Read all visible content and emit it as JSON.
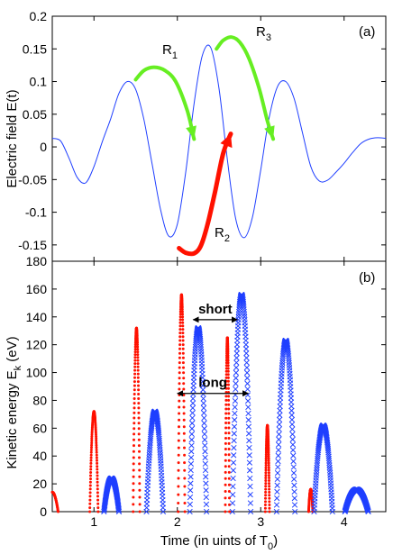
{
  "chart_data": [
    {
      "panel_label": "(a)",
      "type": "line",
      "ylabel": "Electric field E(t)",
      "ylim": [
        -0.175,
        0.2
      ],
      "yticks": [
        -0.15,
        -0.1,
        -0.05,
        0,
        0.05,
        0.1,
        0.15,
        0.2
      ],
      "ytick_labels": [
        "-0.15",
        "-0.1",
        "-0.05",
        "0",
        "0.05",
        "0.1",
        "0.15",
        "0.2"
      ],
      "xlim": [
        0.5,
        4.5
      ],
      "grid": false,
      "series": [
        {
          "color": "#1f3fff",
          "x": [
            0.5,
            0.6,
            0.7,
            0.8,
            0.9,
            1.0,
            1.1,
            1.2,
            1.3,
            1.4,
            1.5,
            1.6,
            1.7,
            1.8,
            1.9,
            2.0,
            2.1,
            2.2,
            2.3,
            2.4,
            2.5,
            2.6,
            2.7,
            2.8,
            2.9,
            3.0,
            3.1,
            3.2,
            3.3,
            3.4,
            3.5,
            3.6,
            3.7,
            3.8,
            3.9,
            4.0,
            4.1,
            4.2,
            4.3,
            4.4,
            4.5
          ],
          "y": [
            0.013,
            0.009,
            -0.017,
            -0.047,
            -0.055,
            -0.03,
            0.008,
            0.043,
            0.082,
            0.1,
            0.088,
            0.041,
            -0.028,
            -0.097,
            -0.137,
            -0.118,
            -0.039,
            0.066,
            0.14,
            0.152,
            0.089,
            -0.02,
            -0.11,
            -0.139,
            -0.108,
            -0.035,
            0.044,
            0.092,
            0.1,
            0.074,
            0.022,
            -0.03,
            -0.052,
            -0.051,
            -0.039,
            -0.025,
            -0.009,
            0.005,
            0.012,
            0.014,
            0.013
          ]
        }
      ],
      "arrows": [
        {
          "label": "R",
          "subscript": "1",
          "color": "#66ee22",
          "x": [
            1.5,
            1.6,
            1.72,
            1.85,
            1.98,
            2.12,
            2.2
          ],
          "y": [
            0.103,
            0.117,
            0.122,
            0.117,
            0.1,
            0.055,
            0.012
          ]
        },
        {
          "label": "R",
          "subscript": "2",
          "color": "#ff1100",
          "x": [
            2.02,
            2.1,
            2.2,
            2.28,
            2.36,
            2.45,
            2.55,
            2.64
          ],
          "y": [
            -0.155,
            -0.162,
            -0.163,
            -0.152,
            -0.12,
            -0.07,
            -0.01,
            0.02
          ]
        },
        {
          "label": "R",
          "subscript": "3",
          "color": "#66ee22",
          "x": [
            2.47,
            2.55,
            2.65,
            2.75,
            2.86,
            2.98,
            3.08,
            3.15
          ],
          "y": [
            0.15,
            0.163,
            0.168,
            0.16,
            0.135,
            0.09,
            0.04,
            0.012
          ]
        }
      ]
    },
    {
      "panel_label": "(b)",
      "type": "scatter",
      "xlabel": "Time (in uints of T",
      "xlabel_subscript": "0",
      "xlabel_suffix": ")",
      "ylabel": "Kinetic energy E",
      "ylabel_subscript": "k",
      "ylabel_suffix": " (eV)",
      "xlim": [
        0.5,
        4.5
      ],
      "ylim": [
        0,
        180
      ],
      "xticks": [
        1,
        2,
        3,
        4
      ],
      "xtick_labels": [
        "1",
        "2",
        "3",
        "4"
      ],
      "yticks": [
        0,
        20,
        40,
        60,
        80,
        100,
        120,
        140,
        160,
        180
      ],
      "ytick_labels": [
        "0",
        "20",
        "40",
        "60",
        "80",
        "100",
        "120",
        "140",
        "160",
        "180"
      ],
      "grid": false,
      "series": [
        {
          "marker": "dot",
          "color": "#ff1100",
          "peaks": [
            {
              "center": 0.5,
              "height": 14,
              "width": 0.07
            },
            {
              "center": 1.0,
              "height": 72,
              "width": 0.05
            },
            {
              "center": 1.51,
              "height": 132,
              "width": 0.04
            },
            {
              "center": 2.05,
              "height": 156,
              "width": 0.04
            },
            {
              "center": 2.6,
              "height": 125,
              "width": 0.025
            },
            {
              "center": 3.08,
              "height": 62,
              "width": 0.025
            },
            {
              "center": 3.6,
              "height": 16,
              "width": 0.025
            }
          ]
        },
        {
          "marker": "x",
          "color": "#1f3fff",
          "peaks": [
            {
              "center": 1.21,
              "height": 24,
              "width": 0.09
            },
            {
              "center": 1.73,
              "height": 72,
              "width": 0.1
            },
            {
              "center": 2.25,
              "height": 132,
              "width": 0.1
            },
            {
              "center": 2.77,
              "height": 156,
              "width": 0.11
            },
            {
              "center": 3.3,
              "height": 123,
              "width": 0.11
            },
            {
              "center": 3.75,
              "height": 62,
              "width": 0.11
            },
            {
              "center": 4.15,
              "height": 16,
              "width": 0.14
            }
          ]
        }
      ],
      "annotations": [
        {
          "text": "short",
          "x1": 2.19,
          "x2": 2.72,
          "y": 138
        },
        {
          "text": "long",
          "x1": 2.0,
          "x2": 2.85,
          "y": 85
        }
      ]
    }
  ]
}
